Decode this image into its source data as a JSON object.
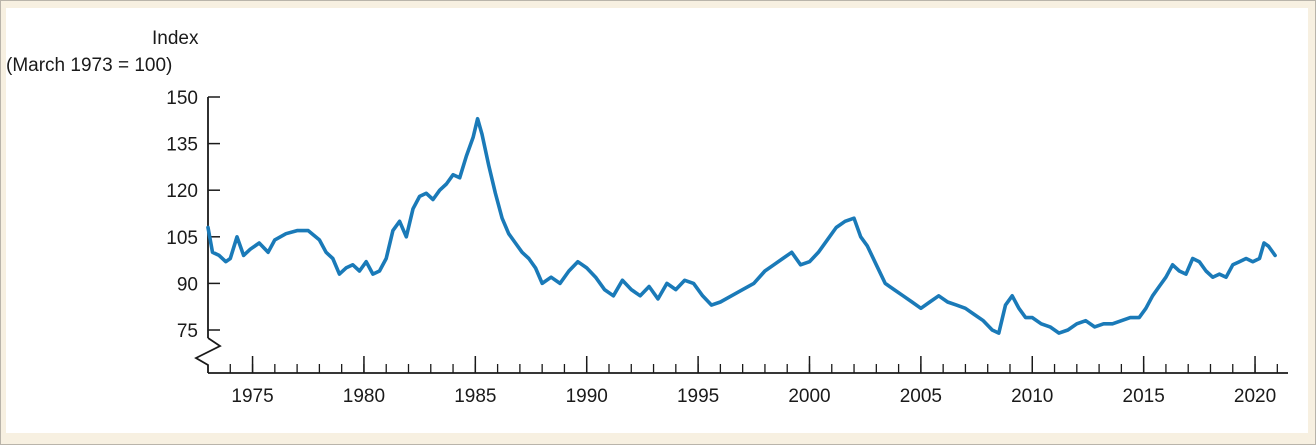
{
  "chart_data": {
    "type": "line",
    "ylabel_line1": "Index",
    "ylabel_line2": "(March 1973 = 100)",
    "xlabel": "",
    "title": "",
    "xlim": [
      1973,
      2021.3
    ],
    "ylim": [
      65,
      150
    ],
    "y_axis_break": true,
    "y_ticks": [
      75,
      90,
      105,
      120,
      135,
      150
    ],
    "x_ticks": [
      1975,
      1980,
      1985,
      1990,
      1995,
      2000,
      2005,
      2010,
      2015,
      2020
    ],
    "grid": false,
    "colors": {
      "line": "#1a7ab8",
      "axis": "#1a1a1a"
    },
    "series": [
      {
        "x": [
          1973.0,
          1973.2,
          1973.5,
          1973.8,
          1974.0,
          1974.3,
          1974.6,
          1974.9,
          1975.3,
          1975.7,
          1976.0,
          1976.5,
          1977.0,
          1977.5,
          1978.0,
          1978.3,
          1978.6,
          1978.9,
          1979.2,
          1979.5,
          1979.8,
          1980.1,
          1980.4,
          1980.7,
          1981.0,
          1981.3,
          1981.6,
          1981.9,
          1982.2,
          1982.5,
          1982.8,
          1983.1,
          1983.4,
          1983.7,
          1984.0,
          1984.3,
          1984.6,
          1984.9,
          1985.1,
          1985.3,
          1985.6,
          1985.9,
          1986.2,
          1986.5,
          1986.8,
          1987.1,
          1987.4,
          1987.7,
          1988.0,
          1988.4,
          1988.8,
          1989.2,
          1989.6,
          1990.0,
          1990.4,
          1990.8,
          1991.2,
          1991.6,
          1992.0,
          1992.4,
          1992.8,
          1993.2,
          1993.6,
          1994.0,
          1994.4,
          1994.8,
          1995.2,
          1995.6,
          1996.0,
          1996.5,
          1997.0,
          1997.5,
          1998.0,
          1998.4,
          1998.8,
          1999.2,
          1999.6,
          2000.0,
          2000.4,
          2000.8,
          2001.2,
          2001.6,
          2002.0,
          2002.3,
          2002.6,
          2003.0,
          2003.4,
          2003.8,
          2004.2,
          2004.6,
          2005.0,
          2005.4,
          2005.8,
          2006.2,
          2006.6,
          2007.0,
          2007.4,
          2007.8,
          2008.2,
          2008.5,
          2008.8,
          2009.1,
          2009.4,
          2009.7,
          2010.0,
          2010.4,
          2010.8,
          2011.2,
          2011.6,
          2012.0,
          2012.4,
          2012.8,
          2013.2,
          2013.6,
          2014.0,
          2014.4,
          2014.8,
          2015.1,
          2015.4,
          2015.7,
          2016.0,
          2016.3,
          2016.6,
          2016.9,
          2017.2,
          2017.5,
          2017.8,
          2018.1,
          2018.4,
          2018.7,
          2019.0,
          2019.3,
          2019.6,
          2019.9,
          2020.2,
          2020.4,
          2020.6,
          2020.9
        ],
        "values": [
          108,
          100,
          99,
          97,
          98,
          105,
          99,
          101,
          103,
          100,
          104,
          106,
          107,
          107,
          104,
          100,
          98,
          93,
          95,
          96,
          94,
          97,
          93,
          94,
          98,
          107,
          110,
          105,
          114,
          118,
          119,
          117,
          120,
          122,
          125,
          124,
          131,
          137,
          143,
          138,
          128,
          119,
          111,
          106,
          103,
          100,
          98,
          95,
          90,
          92,
          90,
          94,
          97,
          95,
          92,
          88,
          86,
          91,
          88,
          86,
          89,
          85,
          90,
          88,
          91,
          90,
          86,
          83,
          84,
          86,
          88,
          90,
          94,
          96,
          98,
          100,
          96,
          97,
          100,
          104,
          108,
          110,
          111,
          105,
          102,
          96,
          90,
          88,
          86,
          84,
          82,
          84,
          86,
          84,
          83,
          82,
          80,
          78,
          75,
          74,
          83,
          86,
          82,
          79,
          79,
          77,
          76,
          74,
          75,
          77,
          78,
          76,
          77,
          77,
          78,
          79,
          79,
          82,
          86,
          89,
          92,
          96,
          94,
          93,
          98,
          97,
          94,
          92,
          93,
          92,
          96,
          97,
          98,
          97,
          98,
          103,
          102,
          99
        ]
      }
    ]
  }
}
